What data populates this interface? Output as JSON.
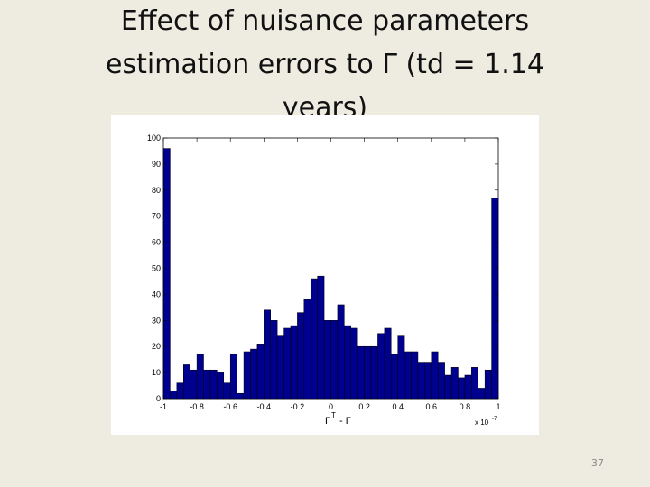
{
  "chart_data": {
    "type": "histogram",
    "title": "Effect of nuisance parameters estimation errors to Γ (td = 1.14 years)",
    "xlabel_base": "Γ",
    "xlabel_sup": "T",
    "xlabel_rest": "- Γ",
    "x_scale_label": "x 10",
    "x_scale_exponent": "-7",
    "bins": [
      -1,
      -0.96,
      -0.92,
      -0.88,
      -0.84,
      -0.8,
      -0.76,
      -0.72,
      -0.68,
      -0.64,
      -0.6,
      -0.56,
      -0.52,
      -0.48,
      -0.44,
      -0.4,
      -0.36,
      -0.32,
      -0.28,
      -0.24,
      -0.2,
      -0.16,
      -0.12,
      -0.08,
      -0.04,
      0,
      0.04,
      0.08,
      0.12,
      0.16,
      0.2,
      0.24,
      0.28,
      0.32,
      0.36,
      0.4,
      0.44,
      0.48,
      0.52,
      0.56,
      0.6,
      0.64,
      0.68,
      0.72,
      0.76,
      0.8,
      0.84,
      0.88,
      0.92,
      0.96,
      1
    ],
    "values": [
      96,
      3,
      6,
      13,
      11,
      17,
      11,
      11,
      10,
      6,
      17,
      2,
      18,
      19,
      21,
      34,
      30,
      24,
      27,
      28,
      33,
      38,
      46,
      47,
      30,
      30,
      36,
      28,
      27,
      20,
      20,
      20,
      25,
      27,
      17,
      24,
      18,
      18,
      14,
      14,
      18,
      14,
      9,
      12,
      8,
      9,
      12,
      4,
      11,
      77
    ],
    "color": "#00008f",
    "xlim": [
      -1,
      1
    ],
    "xticks": [
      -1,
      -0.8,
      -0.6,
      -0.4,
      -0.2,
      0,
      0.2,
      0.4,
      0.6,
      0.8,
      1
    ],
    "ylim": [
      0,
      100
    ],
    "yticks": [
      0,
      10,
      20,
      30,
      40,
      50,
      60,
      70,
      80,
      90,
      100
    ]
  },
  "page_number": "37"
}
